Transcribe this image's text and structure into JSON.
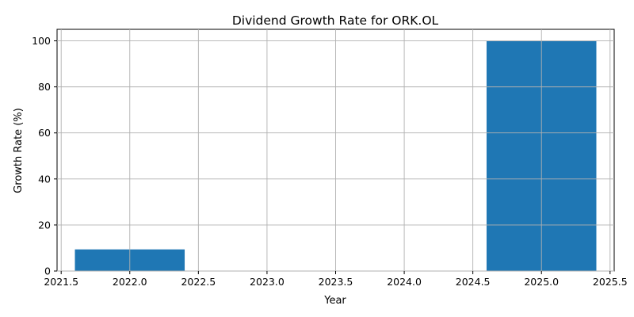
{
  "chart_data": {
    "type": "bar",
    "title": "Dividend Growth Rate for ORK.OL",
    "xlabel": "Year",
    "ylabel": "Growth Rate (%)",
    "x": [
      2022,
      2025
    ],
    "values": [
      9.4,
      100.0
    ],
    "bar_width": 0.8,
    "xlim": [
      2021.47,
      2025.53
    ],
    "ylim": [
      0,
      105
    ],
    "xticks": [
      2021.5,
      2022.0,
      2022.5,
      2023.0,
      2023.5,
      2024.0,
      2024.5,
      2025.0,
      2025.5
    ],
    "xtick_labels": [
      "2021.5",
      "2022.0",
      "2022.5",
      "2023.0",
      "2023.5",
      "2024.0",
      "2024.5",
      "2025.0",
      "2025.5"
    ],
    "yticks": [
      0,
      20,
      40,
      60,
      80,
      100
    ],
    "ytick_labels": [
      "0",
      "20",
      "40",
      "60",
      "80",
      "100"
    ],
    "grid": true,
    "bar_color": "#1f77b4"
  }
}
